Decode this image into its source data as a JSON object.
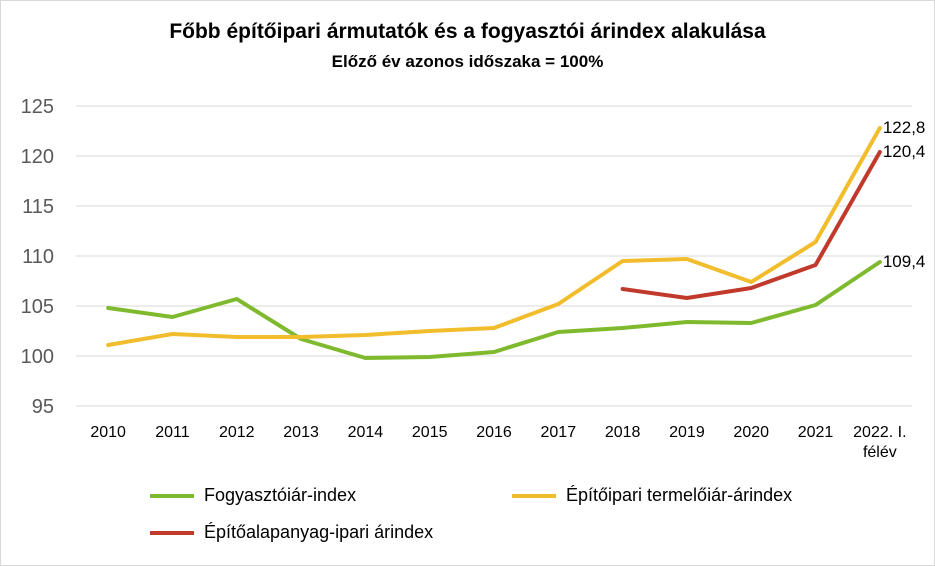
{
  "chart_data": {
    "type": "line",
    "title": "Főbb építőipari ármutatók és a fogyasztói árindex alakulása",
    "subtitle": "Előző év azonos időszaka = 100%",
    "categories": [
      "2010",
      "2011",
      "2012",
      "2013",
      "2014",
      "2015",
      "2016",
      "2017",
      "2018",
      "2019",
      "2020",
      "2021",
      "2022. I. félév"
    ],
    "ylim": [
      95,
      125
    ],
    "yticks": [
      95,
      100,
      105,
      110,
      115,
      120,
      125
    ],
    "grid": true,
    "legend_position": "bottom",
    "series": [
      {
        "name": "Fogyasztóiár-index",
        "color": "#7fba2e",
        "values": [
          104.8,
          103.9,
          105.7,
          101.7,
          99.8,
          99.9,
          100.4,
          102.4,
          102.8,
          103.4,
          103.3,
          105.1,
          109.4
        ],
        "end_label": "109,4"
      },
      {
        "name": "Építőipari termelőiár-árindex",
        "color": "#f2bd2c",
        "values": [
          101.1,
          102.2,
          101.9,
          101.9,
          102.1,
          102.5,
          102.8,
          105.2,
          109.5,
          109.7,
          107.4,
          111.4,
          122.8
        ],
        "end_label": "122,8"
      },
      {
        "name": "Építőalapanyag-ipari árindex",
        "color": "#c0392b",
        "values": [
          null,
          null,
          null,
          null,
          null,
          null,
          null,
          null,
          106.7,
          105.8,
          106.8,
          109.1,
          120.4
        ],
        "end_label": "120,4"
      }
    ]
  }
}
